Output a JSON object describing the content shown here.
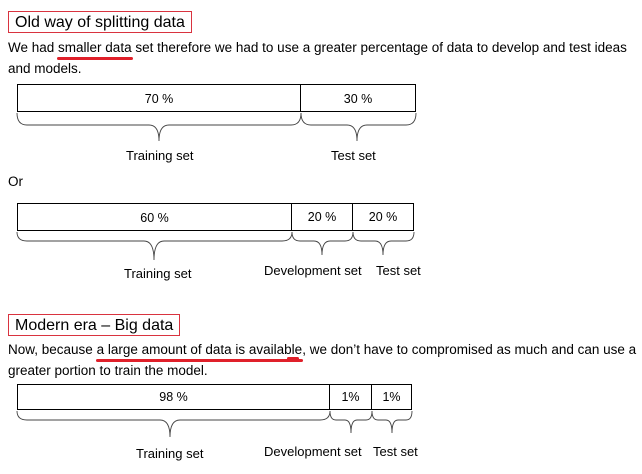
{
  "section1": {
    "heading": "Old way of splitting data",
    "para_pre": "We had ",
    "para_hl": "smaller data",
    "para_post": " set therefore we had to use a greater percentage of data to develop and test ideas and models."
  },
  "split1": {
    "seg1": "70 %",
    "seg2": "30 %",
    "label1": "Training set",
    "label2": "Test set"
  },
  "or_text": "Or",
  "split2": {
    "seg1": "60 %",
    "seg2": "20 %",
    "seg3": "20 %",
    "label1": "Training set",
    "label2": "Development set",
    "label3": "Test set"
  },
  "section2": {
    "heading": "Modern era – Big data",
    "para_pre": "Now, because ",
    "para_hl": "a large amount of data is available",
    "para_post": ", we don’t have to compromised as much and can use a greater portion to train the model."
  },
  "split3": {
    "seg1": "98 %",
    "seg2": "1%",
    "seg3": "1%",
    "label1": "Training set",
    "label2": "Development set",
    "label3": "Test set"
  },
  "colors": {
    "accent_red": "#e0202a",
    "heading_border": "#d9333f"
  }
}
